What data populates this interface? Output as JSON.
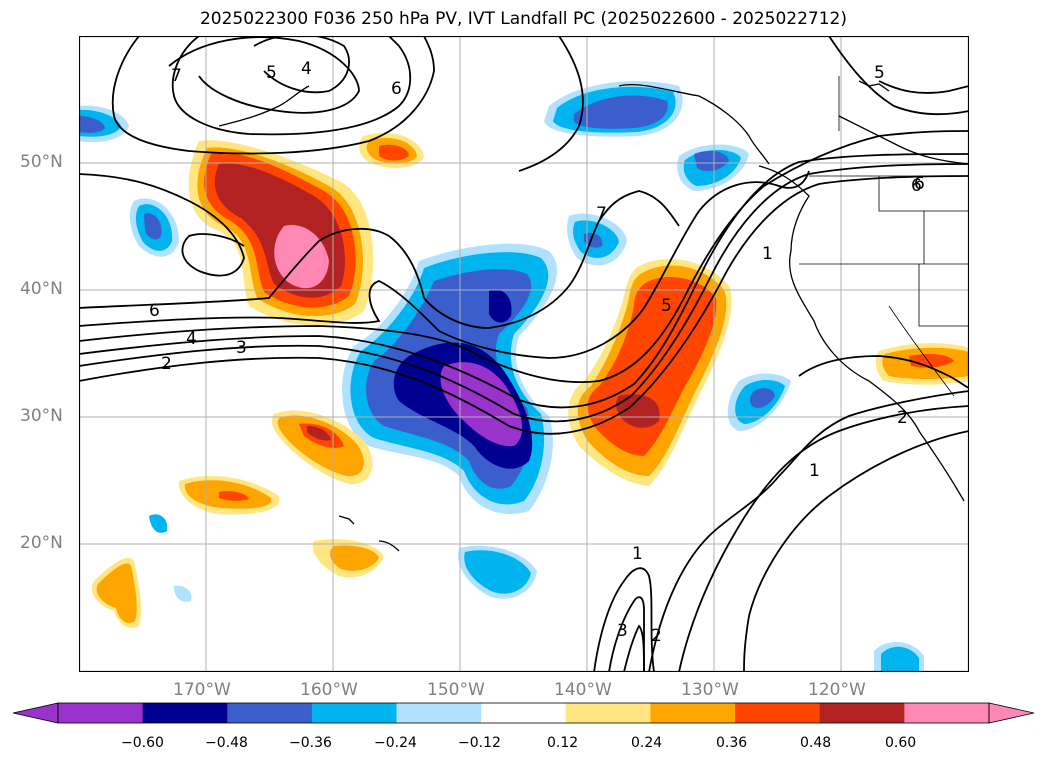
{
  "title": "2025022300 F036 250 hPa PV, IVT Landfall PC (2025022600 - 2025022712)",
  "map": {
    "lat_labels": [
      {
        "text": "50°N",
        "value": 50
      },
      {
        "text": "40°N",
        "value": 40
      },
      {
        "text": "30°N",
        "value": 30
      },
      {
        "text": "20°N",
        "value": 20
      }
    ],
    "lon_labels": [
      {
        "text": "170°W",
        "value": -170
      },
      {
        "text": "160°W",
        "value": -160
      },
      {
        "text": "150°W",
        "value": -150
      },
      {
        "text": "140°W",
        "value": -140
      },
      {
        "text": "130°W",
        "value": -130
      },
      {
        "text": "120°W",
        "value": -120
      }
    ],
    "contour_labels": [
      "7",
      "5",
      "4",
      "6",
      "5",
      "6",
      "6",
      "4",
      "3",
      "2",
      "7",
      "5",
      "1",
      "6",
      "2",
      "1",
      "1",
      "3",
      "2"
    ]
  },
  "colorbar": {
    "ticks": [
      "−0.60",
      "−0.48",
      "−0.36",
      "−0.24",
      "−0.12",
      "0.12",
      "0.24",
      "0.36",
      "0.48",
      "0.60"
    ],
    "colors": [
      "#9933cc",
      "#000090",
      "#3a5fcd",
      "#00b4f0",
      "#b0e2ff",
      "#ffffff",
      "#ffe680",
      "#ffa500",
      "#ff4500",
      "#b22222",
      "#ff88b5",
      "#ff88b5"
    ]
  }
}
